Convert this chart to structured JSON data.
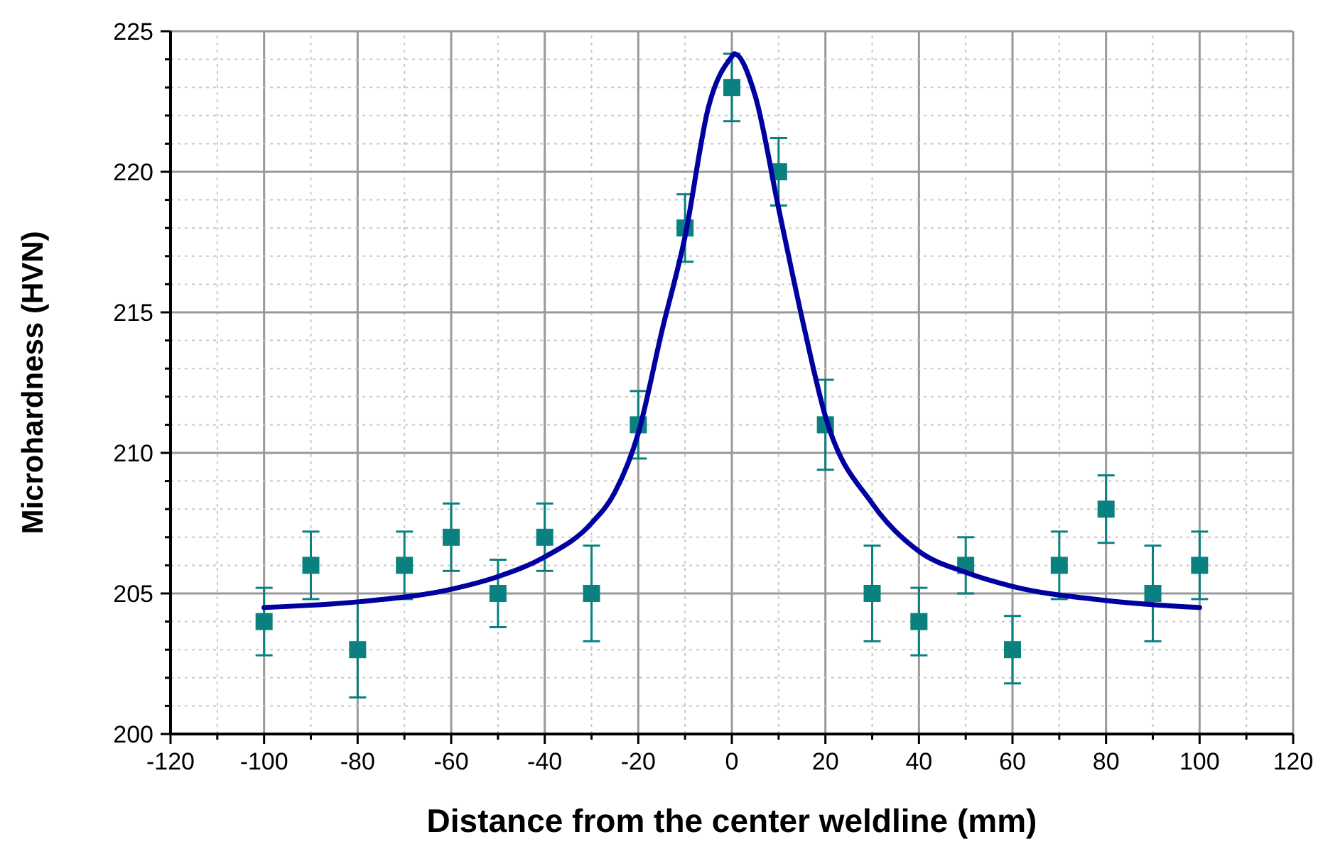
{
  "chart_data": {
    "type": "scatter",
    "xlabel": "Distance from the center weldline (mm)",
    "ylabel": "Microhardness (HVN)",
    "xlim": [
      -120,
      120
    ],
    "ylim": [
      200,
      225
    ],
    "xticks": [
      -120,
      {
        "value": -110,
        "label": null
      },
      -100,
      {
        "value": -90,
        "label": null
      },
      -80,
      {
        "value": -70,
        "label": null
      },
      -60,
      {
        "value": -50,
        "label": null
      },
      -40,
      {
        "value": -30,
        "label": null
      },
      -20,
      {
        "value": -10,
        "label": null
      },
      0,
      {
        "value": 10,
        "label": null
      },
      20,
      {
        "value": 30,
        "label": null
      },
      40,
      {
        "value": 50,
        "label": null
      },
      60,
      {
        "value": 70,
        "label": null
      },
      80,
      {
        "value": 90,
        "label": null
      },
      100,
      {
        "value": 110,
        "label": null
      },
      120
    ],
    "yticks": [
      200,
      {
        "value": 201,
        "label": null
      },
      {
        "value": 202,
        "label": null
      },
      {
        "value": 203,
        "label": null
      },
      {
        "value": 204,
        "label": null
      },
      205,
      {
        "value": 206,
        "label": null
      },
      {
        "value": 207,
        "label": null
      },
      {
        "value": 208,
        "label": null
      },
      {
        "value": 209,
        "label": null
      },
      210,
      {
        "value": 211,
        "label": null
      },
      {
        "value": 212,
        "label": null
      },
      {
        "value": 213,
        "label": null
      },
      {
        "value": 214,
        "label": null
      },
      215,
      {
        "value": 216,
        "label": null
      },
      {
        "value": 217,
        "label": null
      },
      {
        "value": 218,
        "label": null
      },
      {
        "value": 219,
        "label": null
      },
      220,
      {
        "value": 221,
        "label": null
      },
      {
        "value": 222,
        "label": null
      },
      {
        "value": 223,
        "label": null
      },
      {
        "value": 224,
        "label": null
      },
      225
    ],
    "grid": true,
    "series": [
      {
        "marker": "square",
        "color": "#0a8080",
        "x": [
          -100,
          -90,
          -80,
          -70,
          -60,
          -50,
          -40,
          -30,
          -20,
          -10,
          0,
          10,
          20,
          30,
          40,
          50,
          60,
          70,
          80,
          90,
          100
        ],
        "values": [
          204,
          206,
          203,
          206,
          207,
          205,
          207,
          205,
          211,
          218,
          223,
          220,
          211,
          205,
          204,
          206,
          203,
          206,
          208,
          205,
          206
        ],
        "errors": [
          1.2,
          1.2,
          1.7,
          1.2,
          1.2,
          1.2,
          1.2,
          1.7,
          1.2,
          1.2,
          1.2,
          1.2,
          1.6,
          1.7,
          1.2,
          1.0,
          1.2,
          1.2,
          1.2,
          1.7,
          1.2
        ]
      },
      {
        "type": "line",
        "marker": "none",
        "line_style": "solid",
        "color": "#0000a0",
        "x": [
          -100,
          -80,
          -60,
          -50,
          -40,
          -30,
          -25,
          -20,
          -15,
          -10,
          -5,
          0,
          0.5,
          5,
          10,
          15,
          20,
          30,
          40,
          50,
          60,
          80,
          100
        ],
        "values": [
          204.5,
          204.7,
          205.15,
          205.6,
          206.3,
          207.5,
          208.6,
          210.7,
          214.3,
          217.7,
          222.3,
          224.1,
          224.2,
          222.7,
          218.7,
          214.8,
          211.3,
          208.2,
          206.5,
          205.75,
          205.25,
          204.75,
          204.5
        ]
      }
    ]
  }
}
